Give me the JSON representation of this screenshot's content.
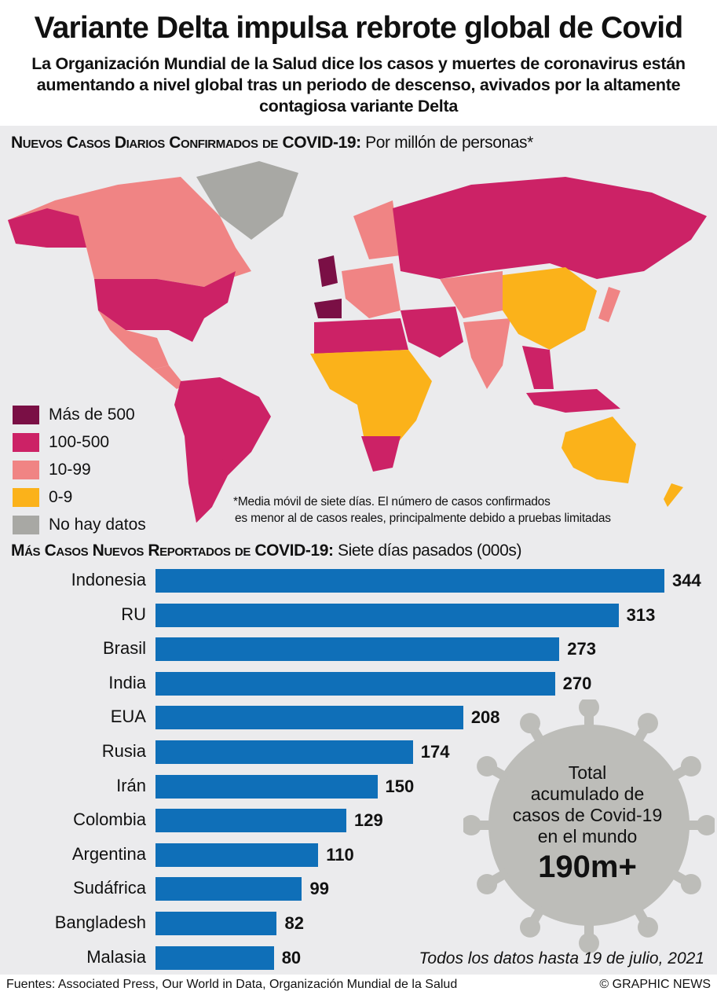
{
  "title": "Variante Delta impulsa rebrote global de Covid",
  "subtitle": "La Organización Mundial de la Salud dice los casos y muertes de coronavirus están aumentando a nivel global tras un periodo de descenso, avivados por la altamente contagiosa variante Delta",
  "map": {
    "heading_bold": "Nuevos Casos Diarios Confirmados de COVID-19:",
    "heading_rest": " Por millón de personas*",
    "legend": [
      {
        "label": "Más de 500",
        "color": "#7a0f45"
      },
      {
        "label": "100-500",
        "color": "#cc2266"
      },
      {
        "label": "10-99",
        "color": "#f08484"
      },
      {
        "label": "0-9",
        "color": "#fbb21a"
      },
      {
        "label": "No hay datos",
        "color": "#a8a8a4"
      }
    ],
    "footnote_1": "*Media móvil de siete días. El número de casos confirmados",
    "footnote_2": "es menor al de casos reales, principalmente debido a pruebas limitadas"
  },
  "chart_data": {
    "type": "bar",
    "title": "Más Casos Nuevos Reportados de COVID-19",
    "title_bold": "Más Casos Nuevos Reportados de COVID-19:",
    "subtitle": " Siete días pasados (000s)",
    "categories": [
      "Indonesia",
      "RU",
      "Brasil",
      "India",
      "EUA",
      "Rusia",
      "Irán",
      "Colombia",
      "Argentina",
      "Sudáfrica",
      "Bangladesh",
      "Malasia"
    ],
    "values": [
      344,
      313,
      273,
      270,
      208,
      174,
      150,
      129,
      110,
      99,
      82,
      80
    ],
    "bar_color": "#0f6fb8",
    "xlim": [
      0,
      344
    ]
  },
  "callout": {
    "line1": "Total",
    "line2": "acumulado de",
    "line3": "casos de Covid-19",
    "line4": "en el mundo",
    "value": "190m+"
  },
  "date_note": "Todos los datos hasta 19 de julio, 2021",
  "footer": {
    "sources": "Fuentes: Associated Press, Our World in Data, Organización Mundial de la Salud",
    "credit": "© GRAPHIC NEWS"
  }
}
